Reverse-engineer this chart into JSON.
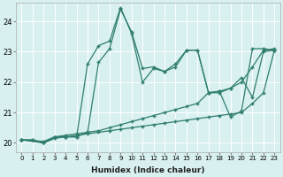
{
  "xlabel": "Humidex (Indice chaleur)",
  "bg_color": "#d8f0f0",
  "line_color": "#2e7d6e",
  "marker": "+",
  "xmin": -0.5,
  "xmax": 23.5,
  "ymin": 19.7,
  "ymax": 24.6,
  "yticks": [
    20,
    21,
    22,
    23,
    24
  ],
  "xticks": [
    0,
    1,
    2,
    3,
    4,
    5,
    6,
    7,
    8,
    9,
    10,
    11,
    12,
    13,
    14,
    15,
    16,
    17,
    18,
    19,
    20,
    21,
    22,
    23
  ],
  "series": [
    {
      "x": [
        0,
        1,
        2,
        3,
        4,
        5,
        6,
        7,
        8,
        9,
        10,
        11,
        12,
        13,
        14,
        15,
        16,
        17,
        18,
        19,
        20,
        21,
        22,
        23
      ],
      "y": [
        20.1,
        20.1,
        20.0,
        20.2,
        20.2,
        20.2,
        22.6,
        23.2,
        23.35,
        24.45,
        23.6,
        22.0,
        22.45,
        22.35,
        22.5,
        23.05,
        23.05,
        21.65,
        21.7,
        20.85,
        21.05,
        23.1,
        23.1,
        23.05
      ]
    },
    {
      "x": [
        0,
        1,
        2,
        3,
        4,
        5,
        6,
        7,
        8,
        9,
        10,
        11,
        12,
        13,
        14,
        15,
        16,
        17,
        18,
        19,
        20,
        21,
        22,
        23
      ],
      "y": [
        20.1,
        20.1,
        20.0,
        20.2,
        20.2,
        20.2,
        20.35,
        22.65,
        23.1,
        24.4,
        23.65,
        22.45,
        22.5,
        22.35,
        22.6,
        23.05,
        23.05,
        21.65,
        21.65,
        21.8,
        22.15,
        21.5,
        23.0,
        23.05
      ]
    },
    {
      "x": [
        0,
        2,
        3,
        4,
        5,
        6,
        7,
        8,
        9,
        10,
        11,
        12,
        13,
        14,
        15,
        16,
        17,
        18,
        19,
        20,
        21,
        22,
        23
      ],
      "y": [
        20.1,
        20.05,
        20.2,
        20.25,
        20.3,
        20.35,
        20.4,
        20.5,
        20.6,
        20.7,
        20.8,
        20.9,
        21.0,
        21.1,
        21.2,
        21.3,
        21.65,
        21.7,
        21.8,
        22.0,
        22.5,
        23.05,
        23.1
      ]
    },
    {
      "x": [
        0,
        2,
        3,
        4,
        5,
        6,
        7,
        8,
        9,
        10,
        11,
        12,
        13,
        14,
        15,
        16,
        17,
        18,
        19,
        20,
        21,
        22,
        23
      ],
      "y": [
        20.1,
        20.0,
        20.15,
        20.2,
        20.25,
        20.3,
        20.35,
        20.4,
        20.45,
        20.5,
        20.55,
        20.6,
        20.65,
        20.7,
        20.75,
        20.8,
        20.85,
        20.9,
        20.95,
        21.0,
        21.3,
        21.65,
        23.05
      ]
    }
  ]
}
